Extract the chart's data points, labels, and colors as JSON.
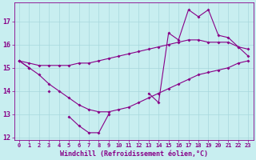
{
  "xlabel": "Windchill (Refroidissement éolien,°C)",
  "background_color": "#c8eef0",
  "grid_color": "#a8d8dc",
  "line_color": "#880088",
  "x_values": [
    0,
    1,
    2,
    3,
    4,
    5,
    6,
    7,
    8,
    9,
    10,
    11,
    12,
    13,
    14,
    15,
    16,
    17,
    18,
    19,
    20,
    21,
    22,
    23
  ],
  "y_actual": [
    15.3,
    15.0,
    null,
    14.0,
    null,
    12.9,
    12.5,
    12.2,
    12.2,
    13.0,
    null,
    null,
    null,
    13.9,
    13.5,
    16.5,
    16.2,
    17.5,
    17.2,
    17.5,
    16.4,
    16.3,
    15.9,
    15.8
  ],
  "y_max": [
    15.3,
    15.2,
    15.1,
    15.1,
    15.1,
    15.1,
    15.2,
    15.2,
    15.3,
    15.4,
    15.5,
    15.6,
    15.7,
    15.8,
    15.9,
    16.0,
    16.1,
    16.2,
    16.2,
    16.1,
    16.1,
    16.1,
    15.9,
    15.5
  ],
  "y_min": [
    15.3,
    15.0,
    14.7,
    14.3,
    14.0,
    13.7,
    13.4,
    13.2,
    13.1,
    13.1,
    13.2,
    13.3,
    13.5,
    13.7,
    13.9,
    14.1,
    14.3,
    14.5,
    14.7,
    14.8,
    14.9,
    15.0,
    15.2,
    15.3
  ],
  "ylim": [
    11.9,
    17.8
  ],
  "xlim": [
    -0.5,
    23.5
  ],
  "yticks": [
    12,
    13,
    14,
    15,
    16,
    17
  ],
  "xticks": [
    0,
    1,
    2,
    3,
    4,
    5,
    6,
    7,
    8,
    9,
    10,
    11,
    12,
    13,
    14,
    15,
    16,
    17,
    18,
    19,
    20,
    21,
    22,
    23
  ],
  "marker": "D",
  "markersize": 2.0,
  "linewidth": 0.8,
  "xlabel_fontsize": 6.0,
  "tick_fontsize": 6.0
}
